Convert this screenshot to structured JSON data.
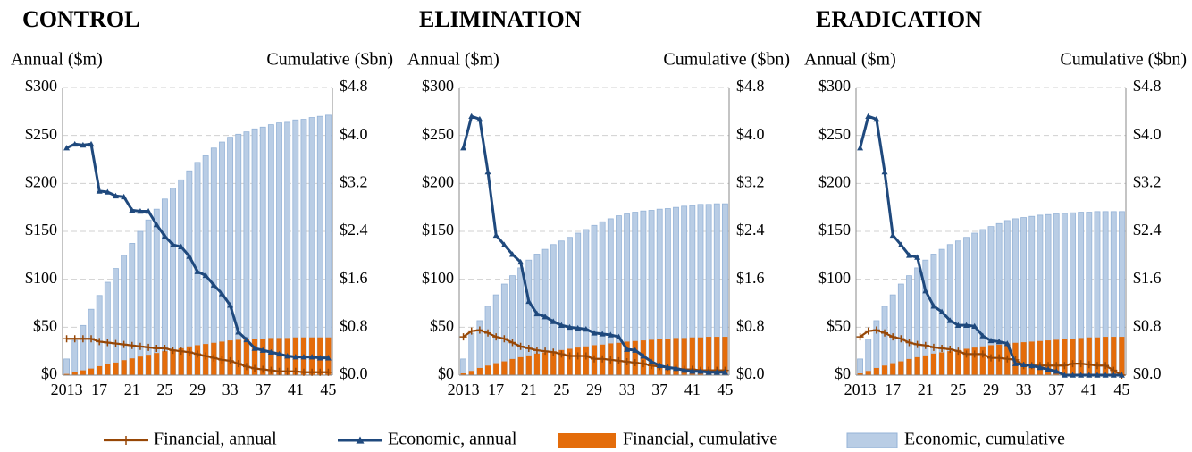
{
  "chart_data": [
    {
      "type": "combo",
      "title": "CONTROL",
      "y_label": "Annual ($m)",
      "y2_label": "Cumulative ($bn)",
      "categories": [
        "2013",
        null,
        null,
        null,
        "17",
        null,
        null,
        null,
        "21",
        null,
        null,
        null,
        "25",
        null,
        null,
        null,
        "29",
        null,
        null,
        null,
        "33",
        null,
        null,
        null,
        "37",
        null,
        null,
        null,
        "41",
        null,
        null,
        null,
        "45"
      ],
      "ylim": [
        0,
        300
      ],
      "yticks": [
        {
          "value": 0,
          "label": "$0"
        },
        {
          "value": 50,
          "label": "$50"
        },
        {
          "value": 100,
          "label": "$100"
        },
        {
          "value": 150,
          "label": "$150"
        },
        {
          "value": 200,
          "label": "$200"
        },
        {
          "value": 250,
          "label": "$250"
        },
        {
          "value": 300,
          "label": "$300"
        }
      ],
      "y2lim": [
        0,
        4.8
      ],
      "y2ticks": [
        {
          "value": 0,
          "label": "$0.0"
        },
        {
          "value": 0.8,
          "label": "$0.8"
        },
        {
          "value": 1.6,
          "label": "$1.6"
        },
        {
          "value": 2.4,
          "label": "$2.4"
        },
        {
          "value": 3.2,
          "label": "$3.2"
        },
        {
          "value": 4.0,
          "label": "$4.0"
        },
        {
          "value": 4.8,
          "label": "$4.8"
        }
      ],
      "grid": true,
      "series": [
        {
          "name": "Financial, annual",
          "type": "line",
          "color": "#974706",
          "values": [
            38,
            38,
            38,
            38,
            35,
            34,
            33,
            32,
            31,
            30,
            29,
            28,
            28,
            26,
            25,
            24,
            22,
            20,
            18,
            16,
            15,
            12,
            9,
            7,
            6,
            5,
            4,
            4,
            4,
            3,
            3,
            3,
            3
          ]
        },
        {
          "name": "Economic, annual",
          "type": "line",
          "color": "#1f497d",
          "values": [
            237,
            241,
            240,
            241,
            192,
            191,
            187,
            186,
            172,
            171,
            171,
            157,
            145,
            136,
            134,
            124,
            108,
            104,
            94,
            85,
            73,
            45,
            37,
            28,
            26,
            24,
            22,
            20,
            19,
            19,
            19,
            18,
            18
          ]
        },
        {
          "name": "Financial, cumulative",
          "type": "bar",
          "axis": "y2",
          "color": "#e46c0a",
          "values": [
            0.02,
            0.05,
            0.08,
            0.11,
            0.15,
            0.18,
            0.21,
            0.25,
            0.28,
            0.31,
            0.34,
            0.37,
            0.4,
            0.43,
            0.45,
            0.48,
            0.5,
            0.52,
            0.54,
            0.56,
            0.58,
            0.59,
            0.6,
            0.61,
            0.61,
            0.62,
            0.62,
            0.62,
            0.63,
            0.63,
            0.63,
            0.63,
            0.63
          ]
        },
        {
          "name": "Economic, cumulative",
          "type": "bar",
          "axis": "y2",
          "color": "#b9cde5",
          "values": [
            0.27,
            0.58,
            0.83,
            1.1,
            1.33,
            1.55,
            1.78,
            2.0,
            2.2,
            2.4,
            2.59,
            2.77,
            2.94,
            3.12,
            3.26,
            3.41,
            3.55,
            3.66,
            3.79,
            3.89,
            3.97,
            4.02,
            4.06,
            4.11,
            4.14,
            4.18,
            4.21,
            4.22,
            4.26,
            4.27,
            4.3,
            4.32,
            4.34
          ]
        }
      ]
    },
    {
      "type": "combo",
      "title": "ELIMINATION",
      "y_label": "Annual ($m)",
      "y2_label": "Cumulative ($bn)",
      "categories": [
        "2013",
        null,
        null,
        null,
        "17",
        null,
        null,
        null,
        "21",
        null,
        null,
        null,
        "25",
        null,
        null,
        null,
        "29",
        null,
        null,
        null,
        "33",
        null,
        null,
        null,
        "37",
        null,
        null,
        null,
        "41",
        null,
        null,
        null,
        "45"
      ],
      "ylim": [
        0,
        300
      ],
      "yticks": [
        {
          "value": 0,
          "label": "$0"
        },
        {
          "value": 50,
          "label": "$50"
        },
        {
          "value": 100,
          "label": "$100"
        },
        {
          "value": 150,
          "label": "$150"
        },
        {
          "value": 200,
          "label": "$200"
        },
        {
          "value": 250,
          "label": "$250"
        },
        {
          "value": 300,
          "label": "$300"
        }
      ],
      "y2lim": [
        0,
        4.8
      ],
      "y2ticks": [
        {
          "value": 0,
          "label": "$0.0"
        },
        {
          "value": 0.8,
          "label": "$0.8"
        },
        {
          "value": 1.6,
          "label": "$1.6"
        },
        {
          "value": 2.4,
          "label": "$2.4"
        },
        {
          "value": 3.2,
          "label": "$3.2"
        },
        {
          "value": 4.0,
          "label": "$4.0"
        },
        {
          "value": 4.8,
          "label": "$4.8"
        }
      ],
      "grid": true,
      "series": [
        {
          "type": "line",
          "color": "#974706",
          "values": [
            40,
            46,
            47,
            44,
            40,
            38,
            34,
            30,
            28,
            26,
            25,
            24,
            22,
            20,
            20,
            20,
            17,
            17,
            16,
            15,
            14,
            13,
            12,
            10,
            9,
            8,
            7,
            6,
            6,
            5,
            5,
            5,
            5
          ]
        },
        {
          "type": "line",
          "color": "#1f497d",
          "values": [
            237,
            270,
            267,
            212,
            146,
            136,
            126,
            118,
            77,
            64,
            61,
            56,
            52,
            50,
            49,
            48,
            44,
            43,
            42,
            40,
            27,
            26,
            20,
            14,
            10,
            8,
            7,
            5,
            4,
            4,
            3,
            3,
            3
          ]
        },
        {
          "type": "bar",
          "axis": "y2",
          "color": "#e46c0a",
          "values": [
            0.03,
            0.07,
            0.12,
            0.16,
            0.2,
            0.23,
            0.27,
            0.3,
            0.33,
            0.36,
            0.38,
            0.4,
            0.42,
            0.44,
            0.46,
            0.48,
            0.5,
            0.51,
            0.53,
            0.54,
            0.56,
            0.57,
            0.58,
            0.59,
            0.6,
            0.61,
            0.62,
            0.62,
            0.63,
            0.63,
            0.64,
            0.64,
            0.64
          ]
        },
        {
          "type": "bar",
          "axis": "y2",
          "color": "#b9cde5",
          "values": [
            0.27,
            0.7,
            0.91,
            1.15,
            1.34,
            1.52,
            1.66,
            1.79,
            1.92,
            2.02,
            2.1,
            2.18,
            2.24,
            2.3,
            2.37,
            2.43,
            2.5,
            2.56,
            2.61,
            2.66,
            2.69,
            2.72,
            2.74,
            2.75,
            2.77,
            2.78,
            2.8,
            2.82,
            2.83,
            2.85,
            2.85,
            2.86,
            2.86
          ]
        }
      ]
    },
    {
      "type": "combo",
      "title": "ERADICATION",
      "y_label": "Annual ($m)",
      "y2_label": "Cumulative ($bn)",
      "categories": [
        "2013",
        null,
        null,
        null,
        "17",
        null,
        null,
        null,
        "21",
        null,
        null,
        null,
        "25",
        null,
        null,
        null,
        "29",
        null,
        null,
        null,
        "33",
        null,
        null,
        null,
        "37",
        null,
        null,
        null,
        "41",
        null,
        null,
        null,
        "45"
      ],
      "ylim": [
        0,
        300
      ],
      "yticks": [
        {
          "value": 0,
          "label": "$0"
        },
        {
          "value": 50,
          "label": "$50"
        },
        {
          "value": 100,
          "label": "$100"
        },
        {
          "value": 150,
          "label": "$150"
        },
        {
          "value": 200,
          "label": "$200"
        },
        {
          "value": 250,
          "label": "$250"
        },
        {
          "value": 300,
          "label": "$300"
        }
      ],
      "y2lim": [
        0,
        4.8
      ],
      "y2ticks": [
        {
          "value": 0,
          "label": "$0.0"
        },
        {
          "value": 0.8,
          "label": "$0.8"
        },
        {
          "value": 1.6,
          "label": "$1.6"
        },
        {
          "value": 2.4,
          "label": "$2.4"
        },
        {
          "value": 3.2,
          "label": "$3.2"
        },
        {
          "value": 4.0,
          "label": "$4.0"
        },
        {
          "value": 4.8,
          "label": "$4.8"
        }
      ],
      "grid": true,
      "series": [
        {
          "type": "line",
          "color": "#974706",
          "values": [
            40,
            46,
            47,
            44,
            40,
            38,
            34,
            32,
            31,
            29,
            28,
            27,
            25,
            22,
            22,
            22,
            18,
            18,
            17,
            16,
            10,
            10,
            10,
            10,
            10,
            10,
            12,
            12,
            11,
            10,
            10,
            5,
            0
          ]
        },
        {
          "type": "line",
          "color": "#1f497d",
          "values": [
            237,
            270,
            267,
            212,
            146,
            136,
            125,
            123,
            88,
            72,
            66,
            57,
            52,
            52,
            51,
            41,
            36,
            35,
            33,
            12,
            11,
            10,
            8,
            6,
            4,
            0,
            0,
            0,
            0,
            0,
            0,
            0,
            0
          ]
        },
        {
          "type": "bar",
          "axis": "y2",
          "color": "#e46c0a",
          "values": [
            0.03,
            0.07,
            0.12,
            0.16,
            0.2,
            0.23,
            0.27,
            0.3,
            0.33,
            0.36,
            0.38,
            0.4,
            0.42,
            0.44,
            0.46,
            0.48,
            0.5,
            0.51,
            0.53,
            0.54,
            0.55,
            0.56,
            0.57,
            0.58,
            0.59,
            0.6,
            0.61,
            0.62,
            0.63,
            0.63,
            0.64,
            0.64,
            0.64
          ]
        },
        {
          "type": "bar",
          "axis": "y2",
          "color": "#b9cde5",
          "values": [
            0.27,
            0.6,
            0.91,
            1.15,
            1.34,
            1.52,
            1.66,
            1.79,
            1.92,
            2.02,
            2.1,
            2.18,
            2.24,
            2.3,
            2.37,
            2.43,
            2.48,
            2.53,
            2.58,
            2.61,
            2.63,
            2.65,
            2.67,
            2.68,
            2.69,
            2.7,
            2.71,
            2.72,
            2.72,
            2.73,
            2.73,
            2.73,
            2.73
          ]
        }
      ]
    }
  ]
}
